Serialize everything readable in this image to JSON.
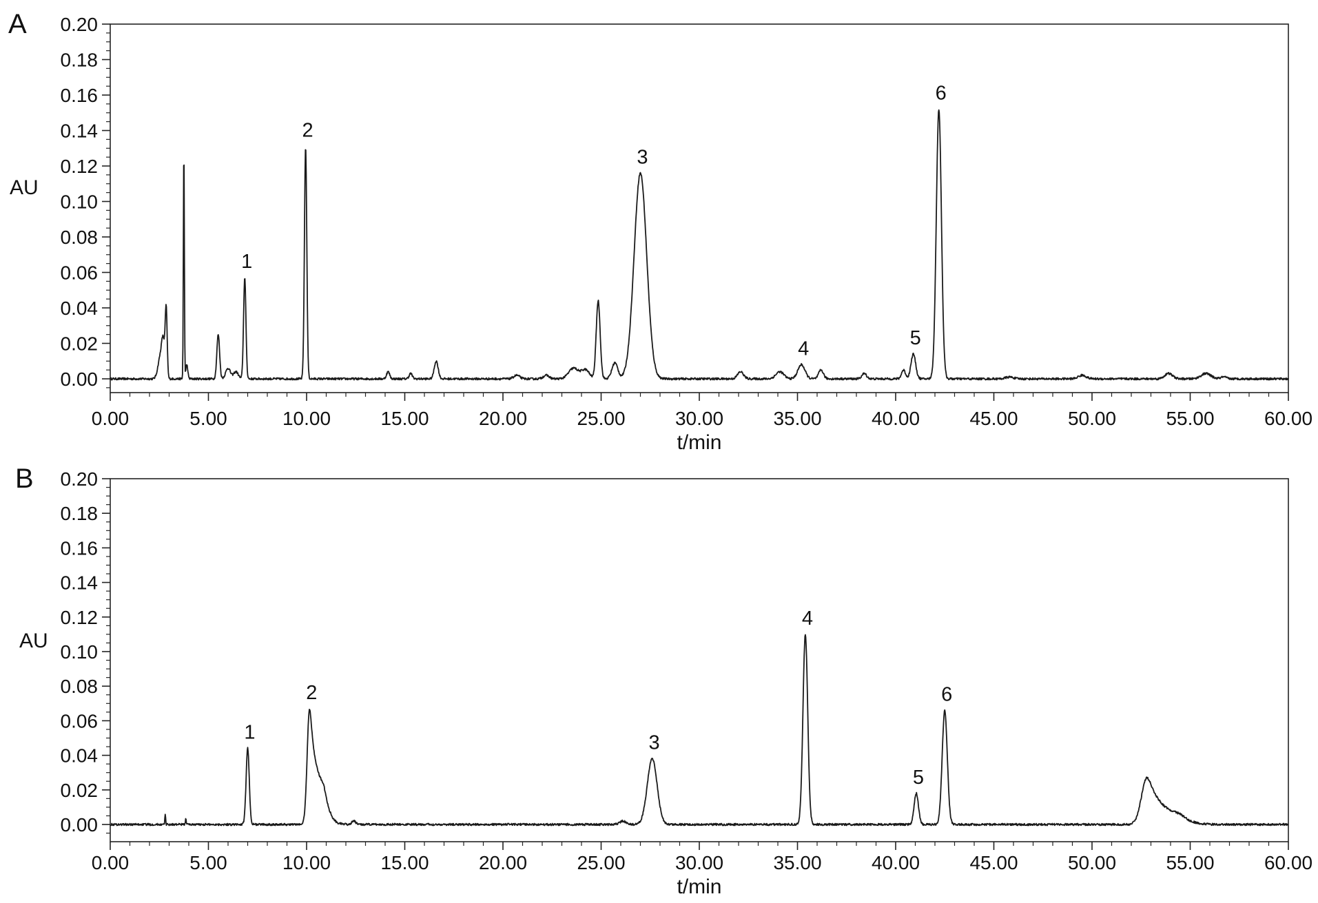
{
  "chart_data": [
    {
      "type": "line",
      "panel": "A",
      "xlabel": "t/min",
      "ylabel": "AU",
      "xlim": [
        0,
        60
      ],
      "ylim": [
        0,
        0.2
      ],
      "x_ticks": [
        "0.00",
        "5.00",
        "10.00",
        "15.00",
        "20.00",
        "25.00",
        "30.00",
        "35.00",
        "40.00",
        "45.00",
        "50.00",
        "55.00",
        "60.00"
      ],
      "y_ticks": [
        "0.00",
        "0.02",
        "0.04",
        "0.06",
        "0.08",
        "0.10",
        "0.12",
        "0.14",
        "0.16",
        "0.18",
        "0.20"
      ],
      "grid": false,
      "baseline": 0.0,
      "line_color": "#1a1a1a",
      "peaks": [
        {
          "t": 2.55,
          "h": 0.012,
          "w": 0.12
        },
        {
          "t": 2.7,
          "h": 0.018,
          "w": 0.08
        },
        {
          "t": 2.85,
          "h": 0.038,
          "w": 0.05
        },
        {
          "t": 3.75,
          "h": 0.13,
          "w": 0.025
        },
        {
          "t": 3.9,
          "h": 0.008,
          "w": 0.05
        },
        {
          "t": 5.5,
          "h": 0.025,
          "w": 0.07
        },
        {
          "t": 6.0,
          "h": 0.006,
          "w": 0.12
        },
        {
          "t": 6.4,
          "h": 0.004,
          "w": 0.12
        },
        {
          "t": 6.85,
          "h": 0.057,
          "w": 0.06,
          "label": "1"
        },
        {
          "t": 9.95,
          "h": 0.131,
          "w": 0.06,
          "label": "2"
        },
        {
          "t": 14.15,
          "h": 0.004,
          "w": 0.08
        },
        {
          "t": 15.3,
          "h": 0.003,
          "w": 0.08
        },
        {
          "t": 16.6,
          "h": 0.01,
          "w": 0.1
        },
        {
          "t": 20.7,
          "h": 0.002,
          "w": 0.15
        },
        {
          "t": 22.2,
          "h": 0.002,
          "w": 0.15
        },
        {
          "t": 23.6,
          "h": 0.006,
          "w": 0.25
        },
        {
          "t": 24.2,
          "h": 0.005,
          "w": 0.2
        },
        {
          "t": 24.85,
          "h": 0.044,
          "w": 0.1
        },
        {
          "t": 25.7,
          "h": 0.009,
          "w": 0.15
        },
        {
          "t": 27.0,
          "h": 0.116,
          "w": 0.32,
          "label": "3"
        },
        {
          "t": 32.1,
          "h": 0.004,
          "w": 0.15
        },
        {
          "t": 34.1,
          "h": 0.004,
          "w": 0.2
        },
        {
          "t": 35.2,
          "h": 0.008,
          "w": 0.18,
          "label": "4"
        },
        {
          "t": 36.2,
          "h": 0.005,
          "w": 0.12
        },
        {
          "t": 38.4,
          "h": 0.003,
          "w": 0.12
        },
        {
          "t": 40.4,
          "h": 0.005,
          "w": 0.1
        },
        {
          "t": 40.9,
          "h": 0.014,
          "w": 0.12,
          "label": "5"
        },
        {
          "t": 42.2,
          "h": 0.152,
          "w": 0.13,
          "label": "6"
        },
        {
          "t": 45.8,
          "h": 0.001,
          "w": 0.2
        },
        {
          "t": 49.5,
          "h": 0.002,
          "w": 0.2
        },
        {
          "t": 53.9,
          "h": 0.003,
          "w": 0.2
        },
        {
          "t": 55.8,
          "h": 0.003,
          "w": 0.25
        },
        {
          "t": 56.7,
          "h": 0.001,
          "w": 0.15
        }
      ]
    },
    {
      "type": "line",
      "panel": "B",
      "xlabel": "t/min",
      "ylabel": "AU",
      "xlim": [
        0,
        60
      ],
      "ylim": [
        0,
        0.2
      ],
      "x_ticks": [
        "0.00",
        "5.00",
        "10.00",
        "15.00",
        "20.00",
        "25.00",
        "30.00",
        "35.00",
        "40.00",
        "45.00",
        "50.00",
        "55.00",
        "60.00"
      ],
      "y_ticks": [
        "0.00",
        "0.02",
        "0.04",
        "0.06",
        "0.08",
        "0.10",
        "0.12",
        "0.14",
        "0.16",
        "0.18",
        "0.20"
      ],
      "grid": false,
      "baseline": 0.0,
      "line_color": "#1a1a1a",
      "peaks": [
        {
          "t": 2.8,
          "h": 0.006,
          "w": 0.02
        },
        {
          "t": 3.85,
          "h": 0.004,
          "w": 0.02
        },
        {
          "t": 7.0,
          "h": 0.044,
          "w": 0.08,
          "label": "1"
        },
        {
          "t": 10.15,
          "h": 0.067,
          "w": 0.12,
          "tail": 1.5,
          "label": "2"
        },
        {
          "t": 12.4,
          "h": 0.002,
          "w": 0.1
        },
        {
          "t": 26.1,
          "h": 0.002,
          "w": 0.15
        },
        {
          "t": 27.6,
          "h": 0.038,
          "w": 0.25,
          "label": "3"
        },
        {
          "t": 35.4,
          "h": 0.11,
          "w": 0.12,
          "label": "4"
        },
        {
          "t": 41.05,
          "h": 0.018,
          "w": 0.11,
          "label": "5"
        },
        {
          "t": 42.5,
          "h": 0.066,
          "w": 0.13,
          "label": "6"
        },
        {
          "t": 52.8,
          "h": 0.027,
          "w": 0.28,
          "tail": 1.2
        }
      ]
    }
  ]
}
